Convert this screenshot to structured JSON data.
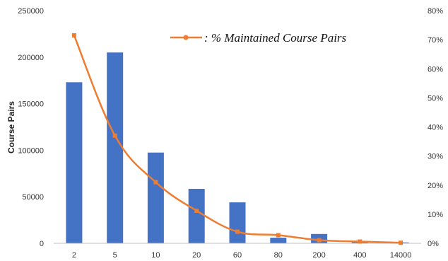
{
  "chart_data": {
    "type": "bar",
    "categories": [
      "2",
      "5",
      "10",
      "20",
      "60",
      "80",
      "200",
      "400",
      "14000"
    ],
    "ylabel": "Course Pairs",
    "ylim": [
      0,
      250000
    ],
    "yticks": [
      "0",
      "50000",
      "100000",
      "150000",
      "200000",
      "250000"
    ],
    "y2lim": [
      0,
      0.8
    ],
    "y2ticks": [
      "0%",
      "10%",
      "20%",
      "30%",
      "40%",
      "50%",
      "60%",
      "70%",
      "80%"
    ],
    "grid": false,
    "legend_position": "top-right",
    "series": [
      {
        "type": "bar",
        "axis": "left",
        "values": [
          173000,
          205000,
          97500,
          58500,
          44000,
          6000,
          10000,
          2500,
          1000
        ],
        "color": "#4472c4"
      },
      {
        "type": "line",
        "axis": "right",
        "name": ": % Maintained Course Pairs",
        "values": [
          0.715,
          0.37,
          0.21,
          0.112,
          0.04,
          0.028,
          0.011,
          0.006,
          0.002
        ],
        "color": "#ed7d31"
      }
    ]
  }
}
